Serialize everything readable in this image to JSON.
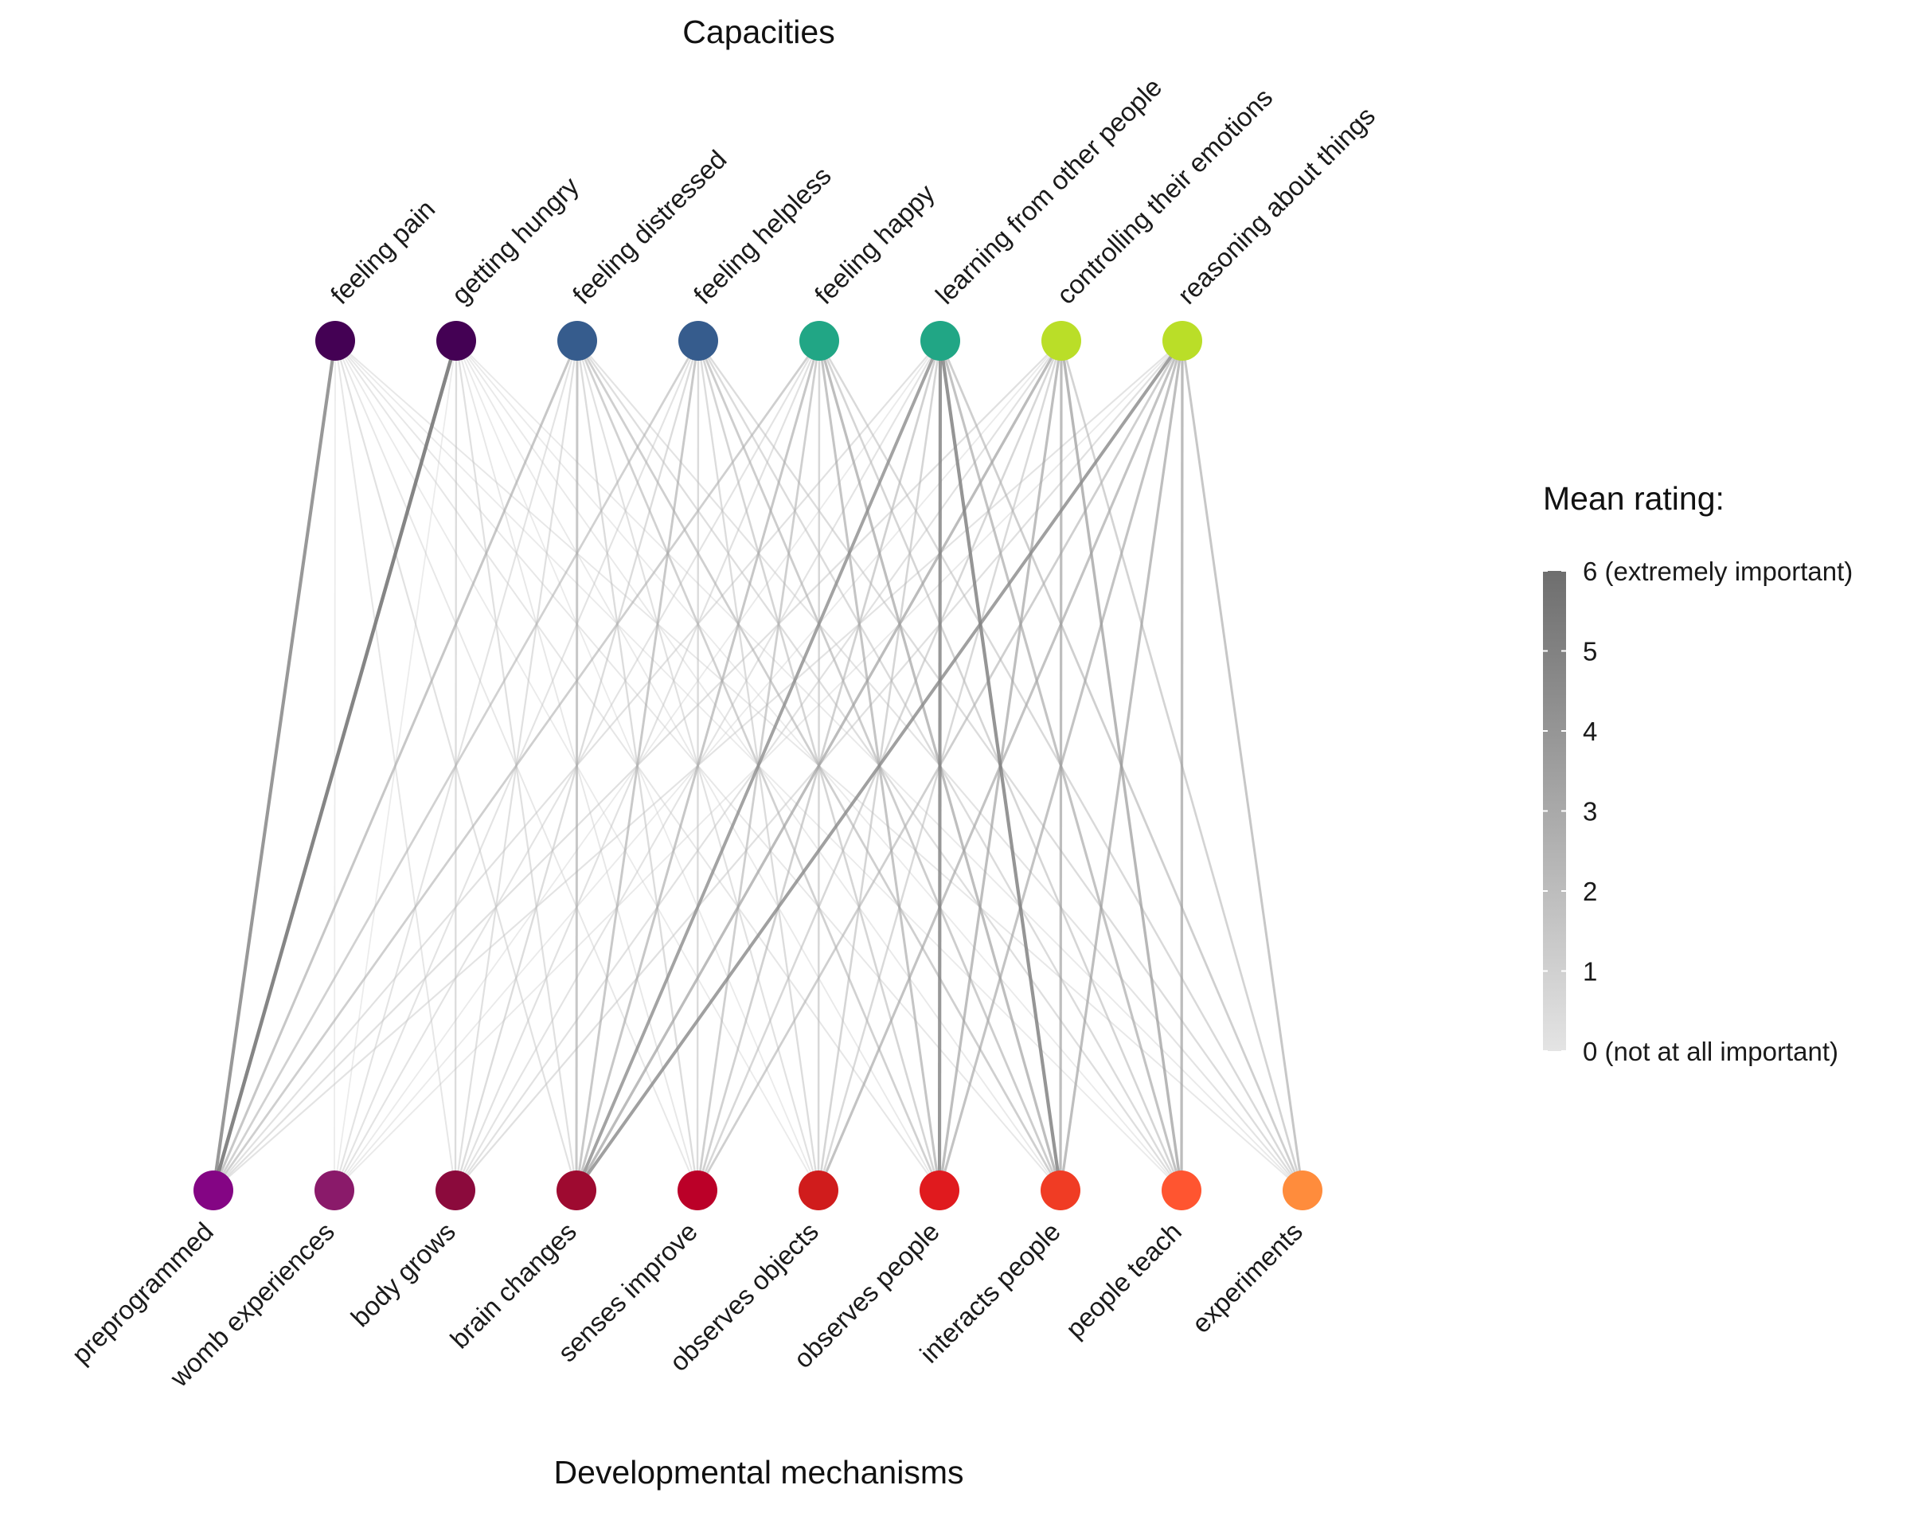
{
  "top_title": "Capacities",
  "bottom_title": "Developmental mechanisms",
  "capacities": [
    {
      "label": "feeling pain",
      "color": "#440154"
    },
    {
      "label": "getting hungry",
      "color": "#440154"
    },
    {
      "label": "feeling distressed",
      "color": "#365C8D"
    },
    {
      "label": "feeling helpless",
      "color": "#365C8D"
    },
    {
      "label": "feeling happy",
      "color": "#21A685"
    },
    {
      "label": "learning from other people",
      "color": "#21A685"
    },
    {
      "label": "controlling their emotions",
      "color": "#BADE28"
    },
    {
      "label": "reasoning about things",
      "color": "#BADE28"
    }
  ],
  "mechanisms": [
    {
      "label": "preprogrammed",
      "color": "#840584"
    },
    {
      "label": "womb experiences",
      "color": "#8A1A6A"
    },
    {
      "label": "body grows",
      "color": "#8B0A3C"
    },
    {
      "label": "brain changes",
      "color": "#9E0A30"
    },
    {
      "label": "senses improve",
      "color": "#BB0028"
    },
    {
      "label": "observes objects",
      "color": "#D01C1C"
    },
    {
      "label": "observes people",
      "color": "#E01A1E"
    },
    {
      "label": "interacts people",
      "color": "#F03C24"
    },
    {
      "label": "people teach",
      "color": "#FF5530"
    },
    {
      "label": "experiments",
      "color": "#FF8C3C"
    }
  ],
  "legend": {
    "title": "Mean rating:",
    "ticks": [
      "6 (extremely important)",
      "5",
      "4",
      "3",
      "2",
      "1",
      "0 (not at all important)"
    ],
    "color_low": "#E4E4E4",
    "color_high": "#6E6E6E"
  },
  "chart_data": {
    "type": "bipartite-network",
    "value_range": [
      0,
      6
    ],
    "rows": [
      "feeling pain",
      "getting hungry",
      "feeling distressed",
      "feeling helpless",
      "feeling happy",
      "learning from other people",
      "controlling their emotions",
      "reasoning about things"
    ],
    "columns": [
      "preprogrammed",
      "womb experiences",
      "body grows",
      "brain changes",
      "senses improve",
      "observes objects",
      "observes people",
      "interacts people",
      "people teach",
      "experiments"
    ],
    "ratings": [
      [
        4.9,
        0.9,
        1.3,
        1.6,
        1.2,
        1.0,
        1.3,
        1.2,
        1.0,
        1.2
      ],
      [
        5.5,
        0.9,
        1.9,
        1.7,
        1.2,
        1.0,
        1.1,
        1.1,
        1.0,
        1.1
      ],
      [
        3.0,
        1.5,
        1.7,
        3.0,
        1.9,
        1.6,
        2.5,
        2.6,
        1.8,
        1.5
      ],
      [
        2.5,
        1.5,
        1.9,
        2.9,
        2.0,
        1.9,
        2.3,
        2.7,
        2.0,
        1.9
      ],
      [
        2.6,
        1.5,
        1.6,
        3.0,
        2.6,
        2.2,
        3.1,
        3.4,
        2.3,
        2.1
      ],
      [
        1.6,
        1.0,
        1.5,
        4.5,
        2.5,
        2.3,
        4.9,
        5.0,
        3.2,
        2.6
      ],
      [
        1.7,
        1.0,
        1.6,
        3.5,
        2.2,
        2.1,
        3.4,
        3.4,
        3.7,
        2.4
      ],
      [
        1.5,
        1.1,
        1.7,
        4.6,
        2.6,
        3.2,
        3.2,
        3.4,
        3.5,
        3.0
      ]
    ]
  }
}
